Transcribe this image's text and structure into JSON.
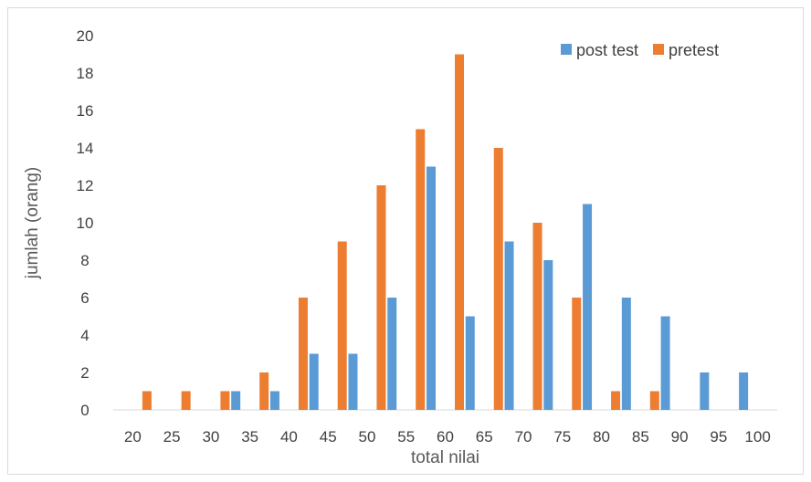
{
  "chart_data": {
    "type": "bar",
    "title": "",
    "xlabel": "total nilai",
    "ylabel": "jumlah (orang)",
    "categories": [
      "20",
      "25",
      "30",
      "35",
      "40",
      "45",
      "50",
      "55",
      "60",
      "65",
      "70",
      "75",
      "80",
      "85",
      "90",
      "95",
      "100"
    ],
    "series": [
      {
        "name": "post test",
        "color": "#5b9bd5",
        "values": [
          0,
          0,
          0,
          1,
          1,
          3,
          3,
          6,
          13,
          5,
          9,
          8,
          11,
          6,
          5,
          2,
          2
        ]
      },
      {
        "name": "pretest",
        "color": "#ed7d31",
        "values": [
          1,
          1,
          1,
          2,
          6,
          9,
          12,
          15,
          19,
          14,
          10,
          6,
          1,
          1,
          0,
          0,
          0
        ]
      }
    ],
    "ylim": [
      0,
      20
    ],
    "yticks": [
      0,
      2,
      4,
      6,
      8,
      10,
      12,
      14,
      16,
      18,
      20
    ],
    "grid": false,
    "legend_position": "top-right"
  }
}
